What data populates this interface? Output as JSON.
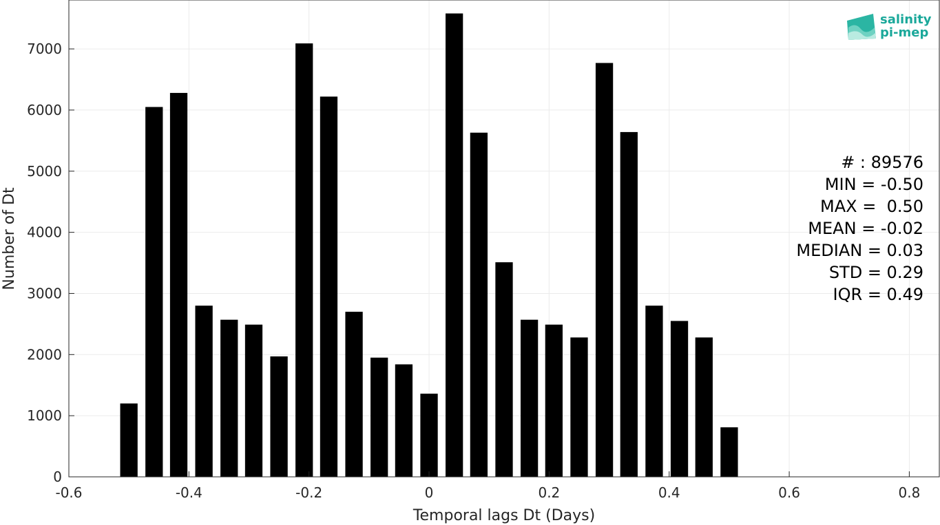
{
  "chart_data": {
    "type": "bar",
    "title": "",
    "xlabel": "Temporal lags Dt (Days)",
    "ylabel": "Number of Dt",
    "xlim": [
      -0.6,
      0.85
    ],
    "ylim": [
      0,
      7800
    ],
    "grid": true,
    "bar_color": "#000000",
    "bar_width": 0.029,
    "x_ticks": [
      -0.6,
      -0.4,
      -0.2,
      0,
      0.2,
      0.4,
      0.6,
      0.8
    ],
    "x_tick_labels": [
      "-0.6",
      "-0.4",
      "-0.2",
      "0",
      "0.2",
      "0.4",
      "0.6",
      "0.8"
    ],
    "y_ticks": [
      0,
      1000,
      2000,
      3000,
      4000,
      5000,
      6000,
      7000
    ],
    "y_tick_labels": [
      "0",
      "1000",
      "2000",
      "3000",
      "4000",
      "5000",
      "6000",
      "7000"
    ],
    "x": [
      -0.5,
      -0.458,
      -0.417,
      -0.375,
      -0.333,
      -0.292,
      -0.25,
      -0.208,
      -0.167,
      -0.125,
      -0.083,
      -0.042,
      0.0,
      0.042,
      0.083,
      0.125,
      0.167,
      0.208,
      0.25,
      0.292,
      0.333,
      0.375,
      0.417,
      0.458,
      0.5
    ],
    "values": [
      1200,
      6050,
      6280,
      2800,
      2570,
      2490,
      1970,
      7090,
      6220,
      2700,
      1950,
      1840,
      1360,
      7580,
      5630,
      3510,
      2570,
      2490,
      2280,
      6770,
      5640,
      2800,
      2550,
      2280,
      810
    ],
    "annotations": [
      "# : 89576",
      "MIN = -0.50",
      "MAX =  0.50",
      "MEAN = -0.02",
      "MEDIAN = 0.03",
      "STD = 0.29",
      "IQR = 0.49"
    ]
  },
  "logo": {
    "line1": "salinity",
    "line2": "pi-mep",
    "color": "#1aa89a"
  }
}
